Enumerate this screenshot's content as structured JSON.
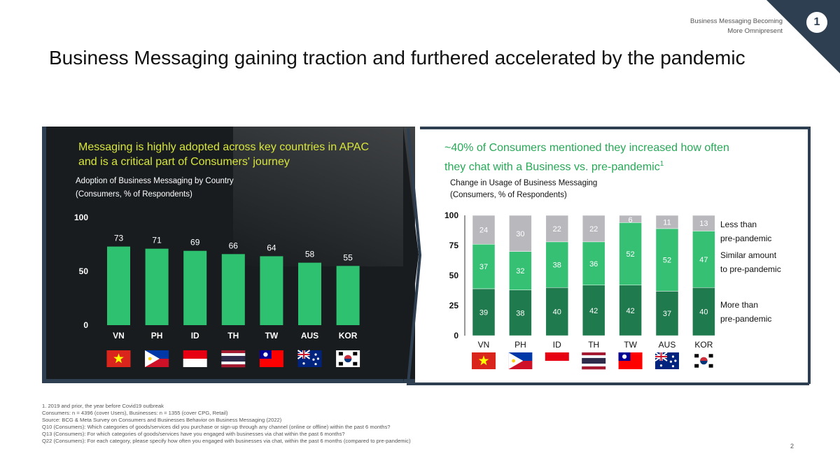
{
  "header": {
    "section_label_line1": "Business Messaging Becoming",
    "section_label_line2": "More Omnipresent",
    "section_number": "1",
    "title": "Business Messaging gaining traction and furthered accelerated by the pandemic"
  },
  "left": {
    "headline_line1": "Messaging is highly adopted across key countries in APAC",
    "headline_line2": "and is a critical part of Consumers' journey",
    "subtitle_line1": "Adoption of Business Messaging by Country",
    "subtitle_line2": "(Consumers, % of Respondents)"
  },
  "right": {
    "headline_line1": "~40% of Consumers mentioned they increased how often",
    "headline_line2": "they chat with a Business vs. pre-pandemic",
    "headline_sup": "1",
    "subtitle_line1": "Change in Usage of Business Messaging",
    "subtitle_line2": "(Consumers, % of Respondents)"
  },
  "colors": {
    "bar_green": "#2ec270",
    "less_than": "#b8b8bd",
    "similar": "#35c074",
    "more_than": "#1f7a4d",
    "headline_left": "#d8e53a",
    "headline_right": "#27a857",
    "frame": "#2f3f52"
  },
  "chart_data": [
    {
      "type": "bar",
      "categories": [
        "VN",
        "PH",
        "ID",
        "TH",
        "TW",
        "AUS",
        "KOR"
      ],
      "values": [
        73,
        71,
        69,
        66,
        64,
        58,
        55
      ],
      "ylim": [
        0,
        100
      ],
      "yticks": [
        0,
        50,
        100
      ],
      "flags": [
        "vn-flag-icon",
        "ph-flag-icon",
        "id-flag-icon",
        "th-flag-icon",
        "tw-flag-icon",
        "aus-flag-icon",
        "kor-flag-icon"
      ]
    },
    {
      "type": "bar",
      "stacked": true,
      "categories": [
        "VN",
        "PH",
        "ID",
        "TH",
        "TW",
        "AUS",
        "KOR"
      ],
      "ylim": [
        0,
        100
      ],
      "yticks": [
        0,
        25,
        50,
        75,
        100
      ],
      "series": [
        {
          "name": "More than pre-pandemic",
          "values": [
            39,
            38,
            40,
            42,
            42,
            37,
            40
          ]
        },
        {
          "name": "Similar amount to pre-pandemic",
          "values": [
            37,
            32,
            38,
            36,
            52,
            52,
            47
          ]
        },
        {
          "name": "Less than pre-pandemic",
          "values": [
            24,
            30,
            22,
            22,
            6,
            11,
            13
          ]
        }
      ],
      "legend_lines": [
        [
          "Less than",
          "pre-pandemic"
        ],
        [
          "Similar amount",
          "to pre-pandemic"
        ],
        [
          "More than",
          "pre-pandemic"
        ]
      ],
      "legend_position": "right"
    }
  ],
  "footnotes": [
    "1. 2019 and prior, the year before Covid19 outbreak",
    "Consumers: n = 4396 (cover Users), Businesses: n = 1355 (cover CPG, Retail)",
    "Source: BCG & Meta Survey on Consumers and Businesses Behavior on Business Messaging (2022)",
    "Q10 (Consumers): Which categories of goods/services did you purchase or sign-up through any channel (online or offline) within the past 6 months?",
    "Q13 (Consumers): For which categories of goods/services have you engaged with businesses via chat within the past 6 months?",
    "Q22 (Consumers): For each category, please specify how often you engaged with businesses via chat, within the past 6 months (compared to pre-pandemic)"
  ],
  "slide_number": "2"
}
